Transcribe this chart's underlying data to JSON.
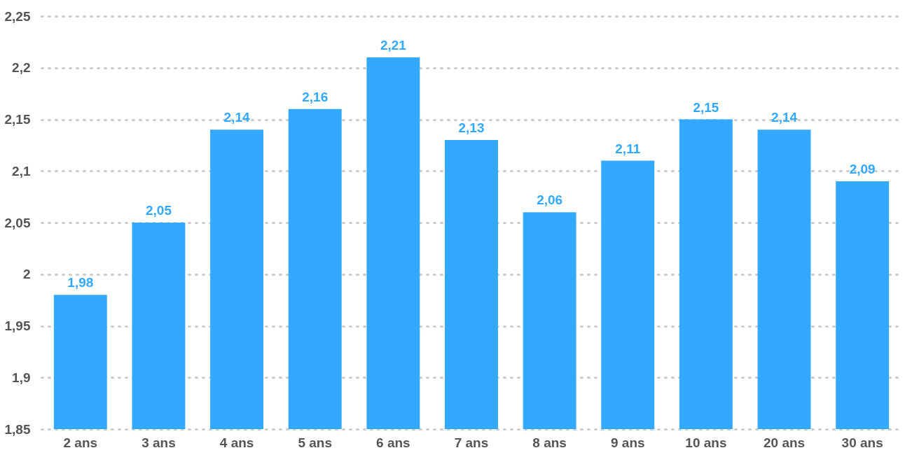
{
  "chart_data": {
    "type": "bar",
    "categories": [
      "2 ans",
      "3 ans",
      "4 ans",
      "5 ans",
      "6 ans",
      "7 ans",
      "8 ans",
      "9 ans",
      "10 ans",
      "20 ans",
      "30 ans"
    ],
    "values": [
      1.98,
      2.05,
      2.14,
      2.16,
      2.21,
      2.13,
      2.06,
      2.11,
      2.15,
      2.14,
      2.09
    ],
    "value_labels": [
      "1,98",
      "2,05",
      "2,14",
      "2,16",
      "2,21",
      "2,13",
      "2,06",
      "2,11",
      "2,15",
      "2,14",
      "2,09"
    ],
    "color": "#33a9fd",
    "ylim": [
      1.85,
      2.25
    ],
    "yticks": [
      {
        "value": 1.85,
        "label": "1,85"
      },
      {
        "value": 1.9,
        "label": "1,9"
      },
      {
        "value": 1.95,
        "label": "1,95"
      },
      {
        "value": 2,
        "label": "2"
      },
      {
        "value": 2.05,
        "label": "2,05"
      },
      {
        "value": 2.1,
        "label": "2,1"
      },
      {
        "value": 2.15,
        "label": "2,15"
      },
      {
        "value": 2.2,
        "label": "2,2"
      },
      {
        "value": 2.25,
        "label": "2,25"
      }
    ],
    "grid": "y"
  }
}
